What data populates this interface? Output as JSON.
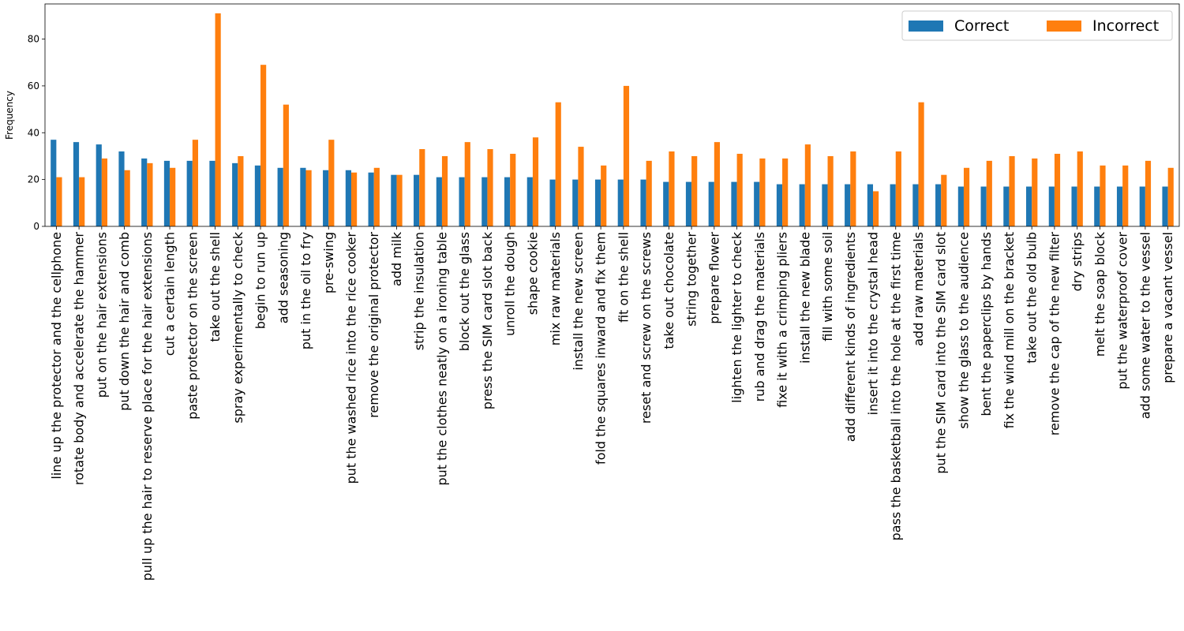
{
  "chart_data": {
    "type": "bar",
    "title": "",
    "xlabel": "",
    "ylabel": "Frequency",
    "ylim": [
      0,
      95
    ],
    "yticks": [
      0,
      20,
      40,
      60,
      80
    ],
    "grid": false,
    "legend_position": "top-right",
    "categories": [
      "line up the protector and the cellphone",
      "rotate body and accelerate the hammer",
      "put on the hair extensions",
      "put down the hair and comb",
      "pull up the hair to reserve place for the hair extensions",
      "cut a certain length",
      "paste protector on the screen",
      "take out the shell",
      "spray experimentally to check",
      "begin to run up",
      "add seasoning",
      "put in the oil to fry",
      "pre-swing",
      "put the washed rice into the rice cooker",
      "remove the original protector",
      "add milk",
      "strip the insulation",
      "put the clothes neatly on a ironing table",
      "block out the glass",
      "press the SIM card slot back",
      "unroll the dough",
      "shape cookie",
      "mix raw materials",
      "install the new screen",
      "fold the squares inward and fix them",
      "fit on the shell",
      "reset and screw on the screws",
      "take out chocolate",
      "string together",
      "prepare flower",
      "lighten the lighter to check",
      "rub and drag the materials",
      "fixe it with a crimping pliers",
      "install the new blade",
      "fill with some soil",
      "add different kinds of ingredients",
      "insert it into the crystal head",
      "pass the basketball into the hole at the first time",
      "add raw materials",
      "put the SIM card into the SIM card slot",
      "show the glass to the audience",
      "bent the paperclips by hands",
      "fix the wind mill on the bracket",
      "take out the old bulb",
      "remove the cap of the new filter",
      "dry strips",
      "melt the soap block",
      "put the waterproof cover",
      "add some water to the vessel",
      "prepare a vacant vessel"
    ],
    "series": [
      {
        "name": "Correct",
        "color": "#1f77b4",
        "values": [
          37,
          36,
          35,
          32,
          29,
          28,
          28,
          28,
          27,
          26,
          25,
          25,
          24,
          24,
          23,
          22,
          22,
          21,
          21,
          21,
          21,
          21,
          20,
          20,
          20,
          20,
          20,
          19,
          19,
          19,
          19,
          19,
          18,
          18,
          18,
          18,
          18,
          18,
          18,
          18,
          17,
          17,
          17,
          17,
          17,
          17,
          17,
          17,
          17,
          17
        ]
      },
      {
        "name": "Incorrect",
        "color": "#ff7f0e",
        "values": [
          21,
          21,
          29,
          24,
          27,
          25,
          37,
          91,
          30,
          69,
          52,
          24,
          37,
          23,
          25,
          22,
          33,
          30,
          36,
          33,
          31,
          38,
          53,
          34,
          26,
          60,
          28,
          32,
          30,
          36,
          31,
          29,
          29,
          35,
          30,
          32,
          15,
          32,
          53,
          22,
          25,
          28,
          30,
          29,
          31,
          32,
          26,
          26,
          28,
          25
        ]
      }
    ]
  }
}
